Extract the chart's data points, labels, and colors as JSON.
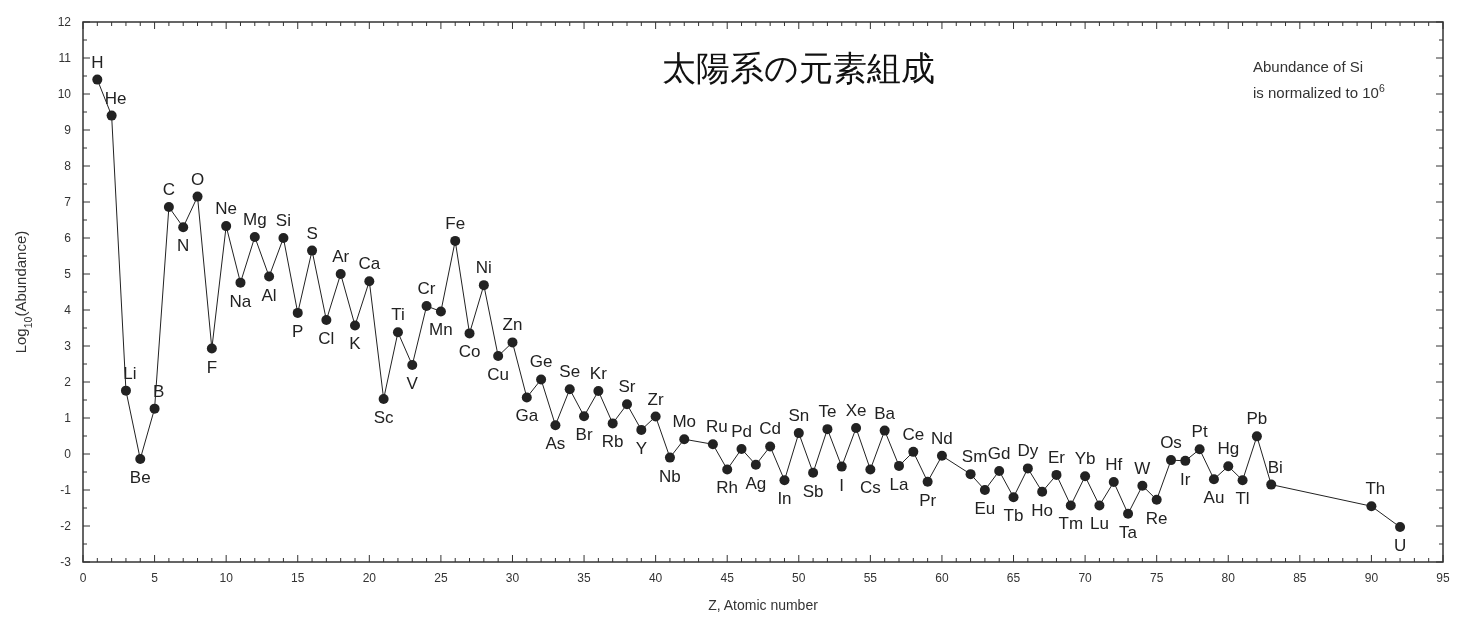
{
  "chart_data": {
    "type": "line",
    "title": "太陽系の元素組成",
    "xlabel": "Z, Atomic number",
    "ylabel": "Log$_{10}$(Abundance)",
    "x": [
      1,
      2,
      3,
      4,
      5,
      6,
      7,
      8,
      9,
      10,
      11,
      12,
      13,
      14,
      15,
      16,
      17,
      18,
      19,
      20,
      21,
      22,
      23,
      24,
      25,
      26,
      27,
      28,
      29,
      30,
      31,
      32,
      33,
      34,
      35,
      36,
      37,
      38,
      39,
      40,
      41,
      42,
      44,
      45,
      46,
      47,
      48,
      49,
      50,
      51,
      52,
      53,
      54,
      55,
      56,
      57,
      58,
      59,
      60,
      62,
      63,
      64,
      65,
      66,
      67,
      68,
      69,
      70,
      71,
      72,
      73,
      74,
      75,
      76,
      77,
      78,
      79,
      80,
      81,
      82,
      83,
      90,
      92
    ],
    "series": [
      {
        "color": "#222222",
        "values": [
          10.4,
          9.4,
          1.76,
          -0.14,
          1.26,
          6.86,
          6.3,
          7.15,
          2.93,
          6.33,
          4.76,
          6.03,
          4.93,
          6.0,
          3.92,
          5.65,
          3.72,
          5.0,
          3.57,
          4.8,
          1.53,
          3.38,
          2.47,
          4.11,
          3.96,
          5.92,
          3.35,
          4.69,
          2.72,
          3.1,
          1.57,
          2.07,
          0.8,
          1.8,
          1.05,
          1.75,
          0.85,
          1.38,
          0.67,
          1.04,
          -0.1,
          0.41,
          0.27,
          -0.43,
          0.14,
          -0.3,
          0.21,
          -0.73,
          0.58,
          -0.52,
          0.69,
          -0.35,
          0.72,
          -0.43,
          0.65,
          -0.33,
          0.06,
          -0.77,
          -0.05,
          -0.56,
          -1.0,
          -0.47,
          -1.2,
          -0.4,
          -1.05,
          -0.58,
          -1.43,
          -0.62,
          -1.43,
          -0.78,
          -1.66,
          -0.88,
          -1.27,
          -0.17,
          -0.19,
          0.13,
          -0.7,
          -0.34,
          -0.73,
          0.49,
          -0.85,
          -1.45,
          -2.03
        ]
      }
    ],
    "xlim": [
      0,
      95
    ],
    "xticks": [
      0,
      5,
      10,
      15,
      20,
      25,
      30,
      35,
      40,
      45,
      50,
      55,
      60,
      65,
      70,
      75,
      80,
      85,
      90,
      95
    ],
    "ylim": [
      -3,
      12
    ],
    "yticks": [
      -3,
      -2,
      -1,
      0,
      1,
      2,
      3,
      4,
      5,
      6,
      7,
      8,
      9,
      10,
      11,
      12
    ],
    "grid": false,
    "marker": "circle",
    "line_style": "solid",
    "annotations": [
      "Abundance of Si is normalized to 10$^{6}$",
      {
        "text": "H",
        "x": 1,
        "y": 10.4
      },
      {
        "text": "He",
        "x": 2,
        "y": 9.4
      },
      {
        "text": "Li",
        "x": 3,
        "y": 1.76
      },
      {
        "text": "Be",
        "x": 4,
        "y": -0.14
      },
      {
        "text": "B",
        "x": 5,
        "y": 1.26
      },
      {
        "text": "C",
        "x": 6,
        "y": 6.86
      },
      {
        "text": "N",
        "x": 7,
        "y": 6.3
      },
      {
        "text": "O",
        "x": 8,
        "y": 7.15
      },
      {
        "text": "F",
        "x": 9,
        "y": 2.93
      },
      {
        "text": "Ne",
        "x": 10,
        "y": 6.33
      },
      {
        "text": "Na",
        "x": 11,
        "y": 4.76
      },
      {
        "text": "Mg",
        "x": 12,
        "y": 6.03
      },
      {
        "text": "Al",
        "x": 13,
        "y": 4.93
      },
      {
        "text": "Si",
        "x": 14,
        "y": 6.0
      },
      {
        "text": "P",
        "x": 15,
        "y": 3.92
      },
      {
        "text": "S",
        "x": 16,
        "y": 5.65
      },
      {
        "text": "Cl",
        "x": 17,
        "y": 3.72
      },
      {
        "text": "Ar",
        "x": 18,
        "y": 5.0
      },
      {
        "text": "K",
        "x": 19,
        "y": 3.57
      },
      {
        "text": "Ca",
        "x": 20,
        "y": 4.8
      },
      {
        "text": "Sc",
        "x": 21,
        "y": 1.53
      },
      {
        "text": "Ti",
        "x": 22,
        "y": 3.38
      },
      {
        "text": "V",
        "x": 23,
        "y": 2.47
      },
      {
        "text": "Cr",
        "x": 24,
        "y": 4.11
      },
      {
        "text": "Mn",
        "x": 25,
        "y": 3.96
      },
      {
        "text": "Fe",
        "x": 26,
        "y": 5.92
      },
      {
        "text": "Co",
        "x": 27,
        "y": 3.35
      },
      {
        "text": "Ni",
        "x": 28,
        "y": 4.69
      },
      {
        "text": "Cu",
        "x": 29,
        "y": 2.72
      },
      {
        "text": "Zn",
        "x": 30,
        "y": 3.1
      },
      {
        "text": "Ga",
        "x": 31,
        "y": 1.57
      },
      {
        "text": "Ge",
        "x": 32,
        "y": 2.07
      },
      {
        "text": "As",
        "x": 33,
        "y": 0.8
      },
      {
        "text": "Se",
        "x": 34,
        "y": 1.8
      },
      {
        "text": "Br",
        "x": 35,
        "y": 1.05
      },
      {
        "text": "Kr",
        "x": 36,
        "y": 1.75
      },
      {
        "text": "Rb",
        "x": 37,
        "y": 0.85
      },
      {
        "text": "Sr",
        "x": 38,
        "y": 1.38
      },
      {
        "text": "Y",
        "x": 39,
        "y": 0.67
      },
      {
        "text": "Zr",
        "x": 40,
        "y": 1.04
      },
      {
        "text": "Nb",
        "x": 41,
        "y": -0.1
      },
      {
        "text": "Mo",
        "x": 42,
        "y": 0.41
      },
      {
        "text": "Ru",
        "x": 44,
        "y": 0.27
      },
      {
        "text": "Rh",
        "x": 45,
        "y": -0.43
      },
      {
        "text": "Pd",
        "x": 46,
        "y": 0.14
      },
      {
        "text": "Ag",
        "x": 47,
        "y": -0.3
      },
      {
        "text": "Cd",
        "x": 48,
        "y": 0.21
      },
      {
        "text": "In",
        "x": 49,
        "y": -0.73
      },
      {
        "text": "Sn",
        "x": 50,
        "y": 0.58
      },
      {
        "text": "Sb",
        "x": 51,
        "y": -0.52
      },
      {
        "text": "Te",
        "x": 52,
        "y": 0.69
      },
      {
        "text": "I",
        "x": 53,
        "y": -0.35
      },
      {
        "text": "Xe",
        "x": 54,
        "y": 0.72
      },
      {
        "text": "Cs",
        "x": 55,
        "y": -0.43
      },
      {
        "text": "Ba",
        "x": 56,
        "y": 0.65
      },
      {
        "text": "La",
        "x": 57,
        "y": -0.33
      },
      {
        "text": "Ce",
        "x": 58,
        "y": 0.06
      },
      {
        "text": "Pr",
        "x": 59,
        "y": -0.77
      },
      {
        "text": "Nd",
        "x": 60,
        "y": -0.05
      },
      {
        "text": "Sm",
        "x": 62,
        "y": -0.56
      },
      {
        "text": "Eu",
        "x": 63,
        "y": -1.0
      },
      {
        "text": "Gd",
        "x": 64,
        "y": -0.47
      },
      {
        "text": "Tb",
        "x": 65,
        "y": -1.2
      },
      {
        "text": "Dy",
        "x": 66,
        "y": -0.4
      },
      {
        "text": "Ho",
        "x": 67,
        "y": -1.05
      },
      {
        "text": "Er",
        "x": 68,
        "y": -0.58
      },
      {
        "text": "Tm",
        "x": 69,
        "y": -1.43
      },
      {
        "text": "Yb",
        "x": 70,
        "y": -0.62
      },
      {
        "text": "Lu",
        "x": 71,
        "y": -1.43
      },
      {
        "text": "Hf",
        "x": 72,
        "y": -0.78
      },
      {
        "text": "Ta",
        "x": 73,
        "y": -1.66
      },
      {
        "text": "W",
        "x": 74,
        "y": -0.88
      },
      {
        "text": "Re",
        "x": 75,
        "y": -1.27
      },
      {
        "text": "Os",
        "x": 76,
        "y": -0.17
      },
      {
        "text": "Ir",
        "x": 77,
        "y": -0.19
      },
      {
        "text": "Pt",
        "x": 78,
        "y": 0.13
      },
      {
        "text": "Au",
        "x": 79,
        "y": -0.7
      },
      {
        "text": "Hg",
        "x": 80,
        "y": -0.34
      },
      {
        "text": "Tl",
        "x": 81,
        "y": -0.73
      },
      {
        "text": "Pb",
        "x": 82,
        "y": 0.49
      },
      {
        "text": "Bi",
        "x": 83,
        "y": -0.85
      },
      {
        "text": "Th",
        "x": 90,
        "y": -1.45
      },
      {
        "text": "U",
        "x": 92,
        "y": -2.03
      }
    ]
  }
}
